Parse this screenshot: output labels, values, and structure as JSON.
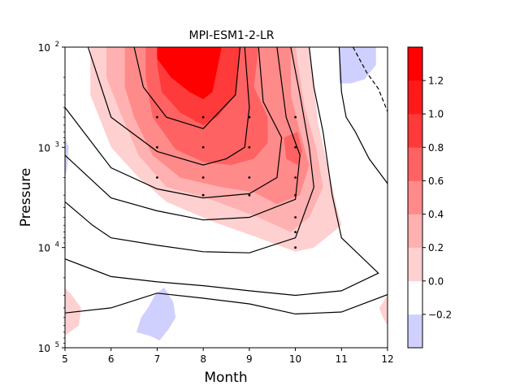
{
  "chart_data": {
    "type": "heatmap",
    "title": "MPI-ESM1-2-LR",
    "xlabel": "Month",
    "ylabel": "Pressure",
    "xlim": [
      5,
      12
    ],
    "ylim": [
      100,
      100000
    ],
    "yscale": "log",
    "y_inverted": true,
    "x_ticks": [
      "5",
      "6",
      "7",
      "8",
      "9",
      "10",
      "11",
      "12"
    ],
    "y_ticks": [
      {
        "value": 100,
        "base": "10",
        "exp": "2"
      },
      {
        "value": 1000,
        "base": "10",
        "exp": "3"
      },
      {
        "value": 10000,
        "base": "10",
        "exp": "4"
      },
      {
        "value": 100000,
        "base": "10",
        "exp": "5"
      }
    ],
    "colorbar": {
      "levels": [
        -0.3,
        -0.2,
        0.0,
        0.2,
        0.4,
        0.6,
        0.8,
        1.0,
        1.2,
        1.3
      ],
      "tick_labels": [
        "−0.2",
        "0.0",
        "0.2",
        "0.4",
        "0.6",
        "0.8",
        "1.0",
        "1.2"
      ],
      "tick_values": [
        -0.2,
        0.0,
        0.2,
        0.4,
        0.6,
        0.8,
        1.0,
        1.2
      ],
      "colors": [
        "#d0d0ff",
        "#ffffff",
        "#ffd0d0",
        "#ffb0b0",
        "#ff8a8a",
        "#ff6262",
        "#ff3a3a",
        "#ff1a1a",
        "#ff0000"
      ]
    },
    "filled_regions": [
      {
        "level": 0.2,
        "color": "#ffd0d0",
        "points": [
          [
            5.55,
            100
          ],
          [
            10.3,
            100
          ],
          [
            10.5,
            600
          ],
          [
            10.9,
            4000
          ],
          [
            11.0,
            6000
          ],
          [
            10.4,
            10000
          ],
          [
            10.0,
            11000
          ],
          [
            9.2,
            8000
          ],
          [
            8.2,
            5500
          ],
          [
            7.2,
            3500
          ],
          [
            6.6,
            2000
          ],
          [
            6.0,
            1000
          ],
          [
            5.55,
            300
          ]
        ]
      },
      {
        "level": 0.4,
        "color": "#ffb0b0",
        "points": [
          [
            5.9,
            100
          ],
          [
            10.0,
            100
          ],
          [
            10.2,
            400
          ],
          [
            10.45,
            1000
          ],
          [
            10.6,
            2500
          ],
          [
            10.3,
            5000
          ],
          [
            9.9,
            7000
          ],
          [
            9.2,
            5000
          ],
          [
            8.0,
            3100
          ],
          [
            7.2,
            2500
          ],
          [
            6.6,
            1200
          ],
          [
            6.2,
            450
          ],
          [
            5.9,
            200
          ]
        ]
      },
      {
        "level": 0.6,
        "color": "#ff8a8a",
        "points": [
          [
            6.3,
            100
          ],
          [
            9.9,
            100
          ],
          [
            9.9,
            300
          ],
          [
            10.1,
            700
          ],
          [
            10.3,
            1500
          ],
          [
            10.1,
            3000
          ],
          [
            9.6,
            3700
          ],
          [
            9.1,
            2800
          ],
          [
            8.4,
            2500
          ],
          [
            7.5,
            2000
          ],
          [
            6.9,
            1200
          ],
          [
            6.5,
            500
          ],
          [
            6.3,
            250
          ]
        ]
      },
      {
        "level": 0.8,
        "color": "#ff6262",
        "points": [
          [
            6.75,
            100
          ],
          [
            9.2,
            100
          ],
          [
            9.1,
            250
          ],
          [
            9.4,
            500
          ],
          [
            9.4,
            900
          ],
          [
            9.1,
            1300
          ],
          [
            8.6,
            1500
          ],
          [
            8.0,
            1400
          ],
          [
            7.4,
            1050
          ],
          [
            6.9,
            500
          ],
          [
            6.75,
            200
          ]
        ]
      },
      {
        "level": 0.8,
        "color": "#ff6262",
        "points": [
          [
            9.75,
            800
          ],
          [
            10.05,
            700
          ],
          [
            10.15,
            1100
          ],
          [
            10.05,
            1500
          ],
          [
            9.8,
            1300
          ]
        ]
      },
      {
        "level": 1.0,
        "color": "#ff3a3a",
        "points": [
          [
            7.0,
            100
          ],
          [
            8.8,
            100
          ],
          [
            8.7,
            300
          ],
          [
            8.3,
            500
          ],
          [
            8.0,
            600
          ],
          [
            7.5,
            450
          ],
          [
            7.1,
            280
          ],
          [
            7.0,
            150
          ]
        ]
      },
      {
        "level": 1.2,
        "color": "#ff0000",
        "points": [
          [
            7.0,
            100
          ],
          [
            8.4,
            100
          ],
          [
            8.2,
            280
          ],
          [
            8.0,
            330
          ],
          [
            7.7,
            280
          ],
          [
            7.3,
            200
          ],
          [
            7.0,
            130
          ]
        ]
      },
      {
        "level": -0.2,
        "color": "#d0d0ff",
        "points": [
          [
            6.55,
            70000
          ],
          [
            6.65,
            50000
          ],
          [
            6.8,
            40000
          ],
          [
            6.95,
            30000
          ],
          [
            7.15,
            25000
          ],
          [
            7.35,
            35000
          ],
          [
            7.4,
            50000
          ],
          [
            7.25,
            65000
          ],
          [
            7.05,
            85000
          ],
          [
            6.95,
            80000
          ],
          [
            6.8,
            75000
          ]
        ]
      },
      {
        "level": -0.2,
        "color": "#d0d0ff",
        "points": [
          [
            10.95,
            100
          ],
          [
            11.75,
            100
          ],
          [
            11.75,
            150
          ],
          [
            11.5,
            210
          ],
          [
            11.2,
            230
          ],
          [
            10.95,
            230
          ]
        ]
      },
      {
        "level": -0.2,
        "color": "#d0d0ff",
        "points": [
          [
            5.0,
            800
          ],
          [
            5.08,
            1000
          ],
          [
            5.05,
            1600
          ],
          [
            5.0,
            2000
          ]
        ]
      },
      {
        "level": 0.2,
        "color": "#ffd0d0",
        "points": [
          [
            5.0,
            25000
          ],
          [
            5.15,
            30000
          ],
          [
            5.35,
            40000
          ],
          [
            5.3,
            60000
          ],
          [
            5.1,
            70000
          ],
          [
            5.0,
            75000
          ]
        ]
      },
      {
        "level": 0.2,
        "color": "#ffd0d0",
        "points": [
          [
            12.0,
            30000
          ],
          [
            11.82,
            40000
          ],
          [
            11.9,
            50000
          ],
          [
            12.0,
            60000
          ]
        ]
      }
    ],
    "contour_lines": [
      {
        "style": "solid",
        "points": [
          [
            6.5,
            100
          ],
          [
            6.7,
            250
          ],
          [
            7.2,
            500
          ],
          [
            8.0,
            650
          ],
          [
            8.7,
            300
          ],
          [
            8.8,
            100
          ]
        ]
      },
      {
        "style": "solid",
        "points": [
          [
            5.5,
            100
          ],
          [
            6.0,
            500
          ],
          [
            7.0,
            1100
          ],
          [
            8.0,
            1500
          ],
          [
            8.5,
            1300
          ],
          [
            8.9,
            1000
          ],
          [
            9.0,
            400
          ],
          [
            8.9,
            100
          ]
        ]
      },
      {
        "style": "solid",
        "points": [
          [
            5.0,
            400
          ],
          [
            6.0,
            1600
          ],
          [
            7.0,
            2600
          ],
          [
            8.0,
            3200
          ],
          [
            9.0,
            2900
          ],
          [
            9.6,
            2000
          ],
          [
            9.7,
            800
          ],
          [
            9.3,
            350
          ],
          [
            9.2,
            100
          ]
        ]
      },
      {
        "style": "solid",
        "points": [
          [
            5.0,
            1200
          ],
          [
            6.0,
            3200
          ],
          [
            7.0,
            4300
          ],
          [
            8.0,
            5300
          ],
          [
            9.0,
            5000
          ],
          [
            10.0,
            3300
          ],
          [
            10.1,
            1200
          ],
          [
            9.8,
            500
          ],
          [
            9.6,
            100
          ]
        ]
      },
      {
        "style": "solid",
        "points": [
          [
            5.0,
            3500
          ],
          [
            5.6,
            6000
          ],
          [
            6.0,
            8000
          ],
          [
            7.0,
            9500
          ],
          [
            8.0,
            11000
          ],
          [
            9.0,
            11300
          ],
          [
            10.0,
            8000
          ],
          [
            10.4,
            2500
          ],
          [
            10.3,
            1000
          ],
          [
            10.1,
            300
          ],
          [
            9.9,
            100
          ]
        ]
      },
      {
        "style": "solid",
        "points": [
          [
            5.0,
            13000
          ],
          [
            6.0,
            19500
          ],
          [
            7.0,
            22000
          ],
          [
            8.0,
            24000
          ],
          [
            9.0,
            27000
          ],
          [
            10.0,
            30000
          ],
          [
            11.0,
            27000
          ],
          [
            11.8,
            18000
          ],
          [
            11.0,
            8000
          ],
          [
            10.8,
            3000
          ],
          [
            10.6,
            700
          ],
          [
            10.4,
            250
          ],
          [
            10.3,
            100
          ]
        ]
      },
      {
        "style": "solid",
        "points": [
          [
            5.0,
            45000
          ],
          [
            6.0,
            40000
          ],
          [
            7.0,
            28500
          ],
          [
            8.0,
            32000
          ],
          [
            9.0,
            36500
          ],
          [
            10.0,
            46000
          ],
          [
            11.0,
            44000
          ],
          [
            12.0,
            29500
          ]
        ]
      },
      {
        "style": "solid",
        "points": [
          [
            10.95,
            100
          ],
          [
            11.0,
            280
          ],
          [
            11.1,
            500
          ],
          [
            11.3,
            700
          ],
          [
            11.6,
            1300
          ],
          [
            12.0,
            2300
          ]
        ]
      },
      {
        "style": "dashed",
        "points": [
          [
            11.25,
            100
          ],
          [
            11.55,
            180
          ],
          [
            11.8,
            260
          ],
          [
            12.0,
            440
          ]
        ]
      }
    ],
    "stipple_points": [
      [
        7,
        500
      ],
      [
        8,
        500
      ],
      [
        9,
        500
      ],
      [
        10,
        500
      ],
      [
        7,
        1000
      ],
      [
        8,
        1000
      ],
      [
        9,
        1000
      ],
      [
        10,
        1000
      ],
      [
        7,
        2000
      ],
      [
        8,
        2000
      ],
      [
        9,
        2000
      ],
      [
        10,
        2000
      ],
      [
        8,
        3000
      ],
      [
        9,
        3000
      ],
      [
        10,
        3000
      ],
      [
        10,
        5000
      ],
      [
        10,
        7000
      ],
      [
        10,
        10000
      ]
    ]
  }
}
